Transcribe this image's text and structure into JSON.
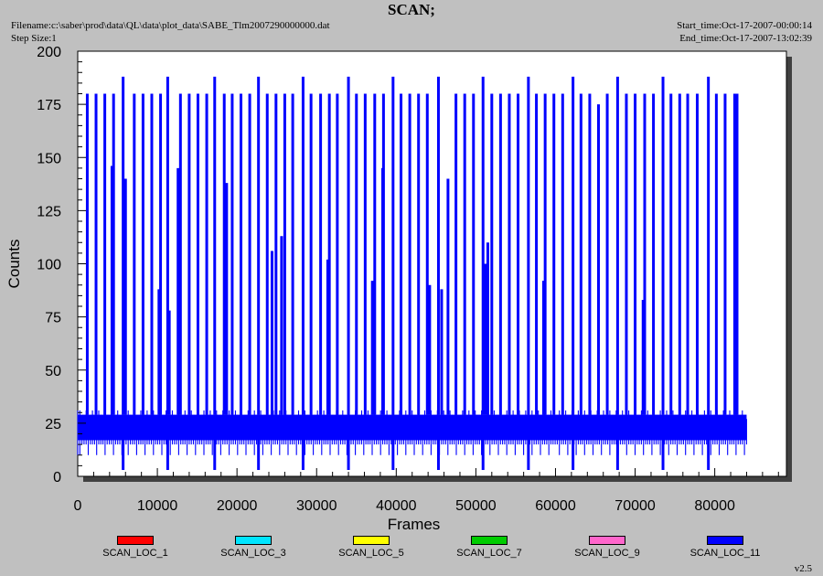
{
  "header": {
    "title": "SCAN;",
    "filename": "Filename:c:\\saber\\prod\\data\\QL\\data\\plot_data\\SABE_Tlm2007290000000.dat",
    "step_size": "Step Size:1",
    "start_time": "Start_time:Oct-17-2007-00:00:14",
    "end_time": "End_time:Oct-17-2007-13:02:39",
    "version": "v2.5"
  },
  "colors": {
    "background": "#c0c0c0",
    "plot_bg": "#ffffff",
    "shadow": "#404040",
    "series_main": "#0000ff",
    "scan_loc_1": "#ff0000",
    "scan_loc_3": "#00e5ff",
    "scan_loc_5": "#ffff00",
    "scan_loc_7": "#00cc00",
    "scan_loc_9": "#ff66cc",
    "scan_loc_11": "#0000ff"
  },
  "chart_data": {
    "type": "line",
    "title": "SCAN;",
    "xlabel": "Frames",
    "ylabel": "Counts",
    "xlim": [
      0,
      89000
    ],
    "ylim": [
      0,
      200
    ],
    "xticks": [
      0,
      10000,
      20000,
      30000,
      40000,
      50000,
      60000,
      70000,
      80000
    ],
    "yticks": [
      0,
      25,
      50,
      75,
      100,
      125,
      150,
      175,
      200
    ],
    "grid": false,
    "legend_position": "bottom",
    "baseline_band": {
      "x_range": [
        0,
        84000
      ],
      "low": 10,
      "high": 31,
      "mid_low": 17,
      "mid_high": 29
    },
    "series": [
      {
        "name": "SCAN_LOC_1",
        "color": "#ff0000"
      },
      {
        "name": "SCAN_LOC_3",
        "color": "#00e5ff"
      },
      {
        "name": "SCAN_LOC_5",
        "color": "#ffff00"
      },
      {
        "name": "SCAN_LOC_7",
        "color": "#00cc00"
      },
      {
        "name": "SCAN_LOC_9",
        "color": "#ff66cc"
      },
      {
        "name": "SCAN_LOC_11",
        "color": "#0000ff"
      }
    ],
    "spikes": [
      {
        "x": 1200,
        "y": 180
      },
      {
        "x": 2300,
        "y": 180
      },
      {
        "x": 3400,
        "y": 180
      },
      {
        "x": 4300,
        "y": 146
      },
      {
        "x": 4500,
        "y": 180
      },
      {
        "x": 5700,
        "y": 188
      },
      {
        "x": 6000,
        "y": 140
      },
      {
        "x": 7100,
        "y": 180
      },
      {
        "x": 8200,
        "y": 180
      },
      {
        "x": 9300,
        "y": 180
      },
      {
        "x": 10200,
        "y": 88
      },
      {
        "x": 10400,
        "y": 180
      },
      {
        "x": 11300,
        "y": 188
      },
      {
        "x": 11500,
        "y": 78
      },
      {
        "x": 12600,
        "y": 145
      },
      {
        "x": 12900,
        "y": 180
      },
      {
        "x": 14000,
        "y": 180
      },
      {
        "x": 15100,
        "y": 180
      },
      {
        "x": 16200,
        "y": 180
      },
      {
        "x": 17200,
        "y": 188
      },
      {
        "x": 18400,
        "y": 180
      },
      {
        "x": 18700,
        "y": 138
      },
      {
        "x": 19400,
        "y": 180
      },
      {
        "x": 20500,
        "y": 180
      },
      {
        "x": 21600,
        "y": 180
      },
      {
        "x": 22700,
        "y": 188
      },
      {
        "x": 23800,
        "y": 180
      },
      {
        "x": 24400,
        "y": 106
      },
      {
        "x": 24900,
        "y": 180
      },
      {
        "x": 25600,
        "y": 113
      },
      {
        "x": 26000,
        "y": 180
      },
      {
        "x": 27000,
        "y": 180
      },
      {
        "x": 28300,
        "y": 188
      },
      {
        "x": 29300,
        "y": 180
      },
      {
        "x": 30500,
        "y": 180
      },
      {
        "x": 31400,
        "y": 102
      },
      {
        "x": 31600,
        "y": 180
      },
      {
        "x": 32600,
        "y": 180
      },
      {
        "x": 34000,
        "y": 188
      },
      {
        "x": 35000,
        "y": 180
      },
      {
        "x": 36100,
        "y": 180
      },
      {
        "x": 37000,
        "y": 92
      },
      {
        "x": 37300,
        "y": 180
      },
      {
        "x": 38300,
        "y": 145
      },
      {
        "x": 38400,
        "y": 180
      },
      {
        "x": 39600,
        "y": 188
      },
      {
        "x": 40600,
        "y": 180
      },
      {
        "x": 41700,
        "y": 180
      },
      {
        "x": 42800,
        "y": 180
      },
      {
        "x": 43900,
        "y": 180
      },
      {
        "x": 44200,
        "y": 90
      },
      {
        "x": 45300,
        "y": 188
      },
      {
        "x": 45700,
        "y": 88
      },
      {
        "x": 46500,
        "y": 140
      },
      {
        "x": 47500,
        "y": 180
      },
      {
        "x": 48600,
        "y": 180
      },
      {
        "x": 49700,
        "y": 180
      },
      {
        "x": 50900,
        "y": 188
      },
      {
        "x": 51200,
        "y": 100
      },
      {
        "x": 51500,
        "y": 110
      },
      {
        "x": 52000,
        "y": 180
      },
      {
        "x": 53100,
        "y": 180
      },
      {
        "x": 54200,
        "y": 180
      },
      {
        "x": 55300,
        "y": 180
      },
      {
        "x": 56600,
        "y": 188
      },
      {
        "x": 57600,
        "y": 180
      },
      {
        "x": 58500,
        "y": 92
      },
      {
        "x": 58700,
        "y": 180
      },
      {
        "x": 59800,
        "y": 180
      },
      {
        "x": 60900,
        "y": 180
      },
      {
        "x": 62200,
        "y": 188
      },
      {
        "x": 63200,
        "y": 180
      },
      {
        "x": 64300,
        "y": 180
      },
      {
        "x": 65400,
        "y": 175
      },
      {
        "x": 66500,
        "y": 180
      },
      {
        "x": 67800,
        "y": 188
      },
      {
        "x": 68900,
        "y": 180
      },
      {
        "x": 70000,
        "y": 180
      },
      {
        "x": 71000,
        "y": 83
      },
      {
        "x": 71200,
        "y": 180
      },
      {
        "x": 72300,
        "y": 180
      },
      {
        "x": 73500,
        "y": 188
      },
      {
        "x": 74500,
        "y": 180
      },
      {
        "x": 75600,
        "y": 180
      },
      {
        "x": 76600,
        "y": 180
      },
      {
        "x": 77800,
        "y": 180
      },
      {
        "x": 79200,
        "y": 188
      },
      {
        "x": 80200,
        "y": 180
      },
      {
        "x": 81300,
        "y": 180
      },
      {
        "x": 82500,
        "y": 180
      },
      {
        "x": 82800,
        "y": 180
      }
    ],
    "dips": [
      {
        "x": 5700,
        "y": 3
      },
      {
        "x": 11300,
        "y": 3
      },
      {
        "x": 17200,
        "y": 3
      },
      {
        "x": 22700,
        "y": 3
      },
      {
        "x": 28300,
        "y": 3
      },
      {
        "x": 34000,
        "y": 3
      },
      {
        "x": 39600,
        "y": 3
      },
      {
        "x": 45300,
        "y": 3
      },
      {
        "x": 50900,
        "y": 3
      },
      {
        "x": 56600,
        "y": 3
      },
      {
        "x": 62200,
        "y": 3
      },
      {
        "x": 67800,
        "y": 3
      },
      {
        "x": 73500,
        "y": 3
      },
      {
        "x": 79200,
        "y": 3
      }
    ]
  }
}
